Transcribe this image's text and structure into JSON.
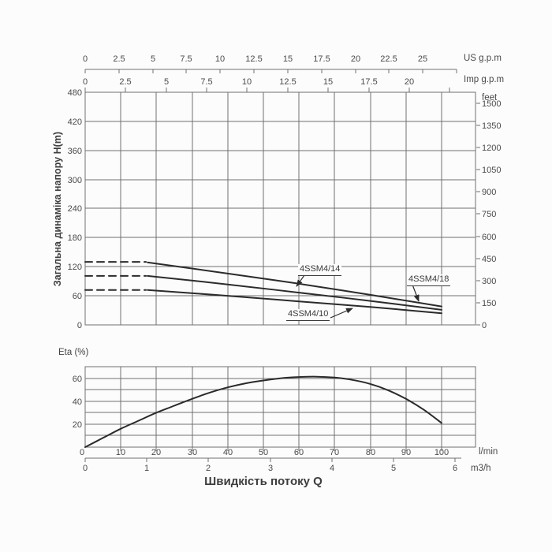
{
  "colors": {
    "background": "#fcfcfc",
    "grid": "#6f6f6f",
    "curve": "#2b2b2b",
    "text": "#4a4a4a"
  },
  "labels": {
    "y_axis_title": "Загальна динаміка напору H(m)",
    "eta_title": "Eta (%)",
    "x_axis_title": "Швидкість потоку Q",
    "unit_us_gpm": "US g.p.m",
    "unit_imp_gpm": "Imp g.p.m",
    "unit_feet": "feet",
    "unit_lmin": "l/min",
    "unit_m3h": "m3/h"
  },
  "chart_data": [
    {
      "name": "head_vs_flow",
      "type": "line",
      "title": "Pump head curves",
      "ylabel": "Загальна динаміка напору H(m)",
      "y2label": "feet",
      "x_unit": "l/min",
      "xlim": [
        0,
        100
      ],
      "ylim": [
        0,
        480
      ],
      "grid": true,
      "y_ticks_m": [
        480,
        420,
        360,
        300,
        240,
        180,
        120,
        60,
        0
      ],
      "y_ticks_feet": [
        1500,
        1350,
        1200,
        1050,
        900,
        750,
        600,
        450,
        300,
        150,
        0
      ],
      "x_ticks_us_gpm": [
        0,
        2.5,
        5,
        7.5,
        10,
        12.5,
        15,
        17.5,
        20,
        22.5,
        25
      ],
      "x_ticks_imp_gpm": [
        0,
        2.5,
        5,
        7.5,
        10,
        12.5,
        15,
        17.5,
        20
      ],
      "series": [
        {
          "name": "4SSM4/18",
          "shutoff_head_m": 130,
          "dashed_to_q": 17.5,
          "points": [
            [
              17.5,
              129
            ],
            [
              40,
              106
            ],
            [
              60,
              85
            ],
            [
              80,
              62
            ],
            [
              100,
              38
            ]
          ]
        },
        {
          "name": "4SSM4/14",
          "shutoff_head_m": 101,
          "dashed_to_q": 17.5,
          "points": [
            [
              17.5,
              101
            ],
            [
              40,
              83.5
            ],
            [
              60,
              66.5
            ],
            [
              80,
              49.5
            ],
            [
              100,
              31
            ]
          ]
        },
        {
          "name": "4SSM4/10",
          "shutoff_head_m": 72,
          "dashed_to_q": 17.5,
          "points": [
            [
              17.5,
              72
            ],
            [
              40,
              60
            ],
            [
              60,
              48.5
            ],
            [
              80,
              37
            ],
            [
              100,
              24
            ]
          ]
        }
      ]
    },
    {
      "name": "efficiency_vs_flow",
      "type": "line",
      "title": "Pump efficiency curve",
      "ylabel": "Eta (%)",
      "x_unit": "l/min",
      "x_unit2": "m3/h",
      "xlim": [
        0,
        100
      ],
      "ylim": [
        0,
        70
      ],
      "grid": true,
      "y_ticks": [
        60,
        40,
        20
      ],
      "x_ticks_lmin": [
        0,
        10,
        20,
        30,
        40,
        50,
        60,
        70,
        80,
        90,
        100
      ],
      "x_ticks_m3h": [
        0,
        1,
        2,
        3,
        4,
        5,
        6
      ],
      "points": [
        [
          0,
          0
        ],
        [
          5,
          8
        ],
        [
          10,
          16
        ],
        [
          15,
          23
        ],
        [
          20,
          30
        ],
        [
          25,
          36
        ],
        [
          30,
          42
        ],
        [
          35,
          47.5
        ],
        [
          40,
          52
        ],
        [
          45,
          55.5
        ],
        [
          50,
          58
        ],
        [
          55,
          60
        ],
        [
          60,
          61
        ],
        [
          65,
          61.3
        ],
        [
          70,
          60.5
        ],
        [
          75,
          58.5
        ],
        [
          80,
          55
        ],
        [
          85,
          49.5
        ],
        [
          90,
          42
        ],
        [
          95,
          32.5
        ],
        [
          100,
          21
        ]
      ]
    }
  ]
}
